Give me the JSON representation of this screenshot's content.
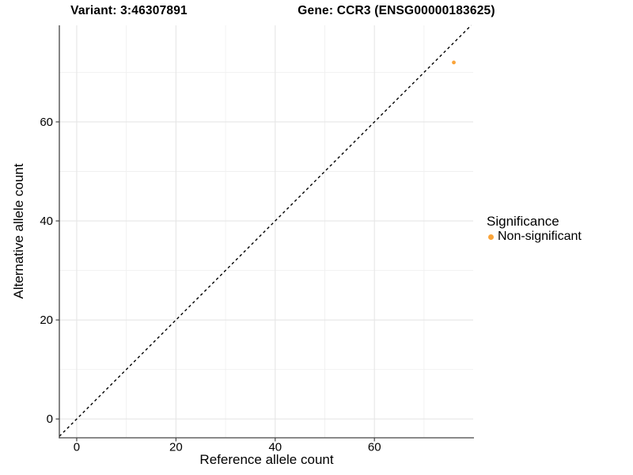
{
  "chart_data": {
    "type": "scatter",
    "titles": {
      "left": "Variant: 3:46307891",
      "right": "Gene: CCR3 (ENSG00000183625)"
    },
    "xlabel": "Reference allele count",
    "ylabel": "Alternative allele count",
    "xlim": [
      -3.5,
      79.9
    ],
    "ylim": [
      -3.8,
      79.5
    ],
    "xticks": [
      0,
      20,
      40,
      60
    ],
    "yticks": [
      0,
      20,
      40,
      60
    ],
    "xticks_minor": [
      10,
      30,
      50,
      70
    ],
    "yticks_minor": [
      10,
      30,
      50,
      70
    ],
    "grid": "major+minor",
    "legend": {
      "title": "Significance",
      "position": "right"
    },
    "reference_line": {
      "kind": "identity y=x",
      "style": "dashed",
      "color": "#000000"
    },
    "series": [
      {
        "name": "Non-significant",
        "color": "#FAA43A",
        "points": [
          {
            "x": 76,
            "y": 72
          }
        ]
      }
    ],
    "colors": {
      "grid_major": "#E6E6E6",
      "grid_minor": "#F0F0F0",
      "axis_line": "#444444",
      "text": "#000000",
      "background": "#FFFFFF"
    }
  }
}
